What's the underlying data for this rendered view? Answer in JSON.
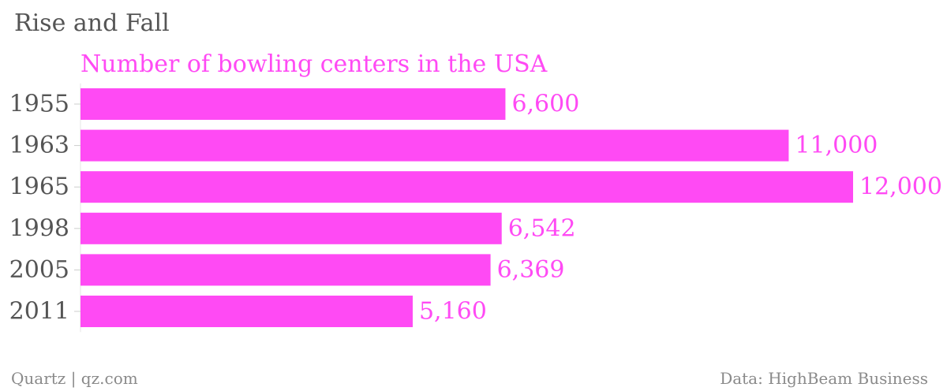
{
  "title": "Rise and Fall",
  "footer": {
    "source_credit": "Quartz | qz.com",
    "data_credit": "Data: HighBeam Business"
  },
  "colors": {
    "bar": "#ff4af4",
    "accent_text": "#ff4af4",
    "axis_text": "#555555",
    "footer_text": "#8a8a8a"
  },
  "chart_data": {
    "type": "bar",
    "orientation": "horizontal",
    "categories": [
      "1955",
      "1963",
      "1965",
      "1998",
      "2005",
      "2011"
    ],
    "series": [
      {
        "name": "Number of bowling centers in the USA",
        "values": [
          6600,
          11000,
          12000,
          6542,
          6369,
          5160
        ]
      }
    ],
    "value_labels": [
      "6,600",
      "11,000",
      "12,000",
      "6,542",
      "6,369",
      "5,160"
    ],
    "xlim": [
      0,
      12000
    ],
    "grid": false,
    "legend": "none"
  }
}
